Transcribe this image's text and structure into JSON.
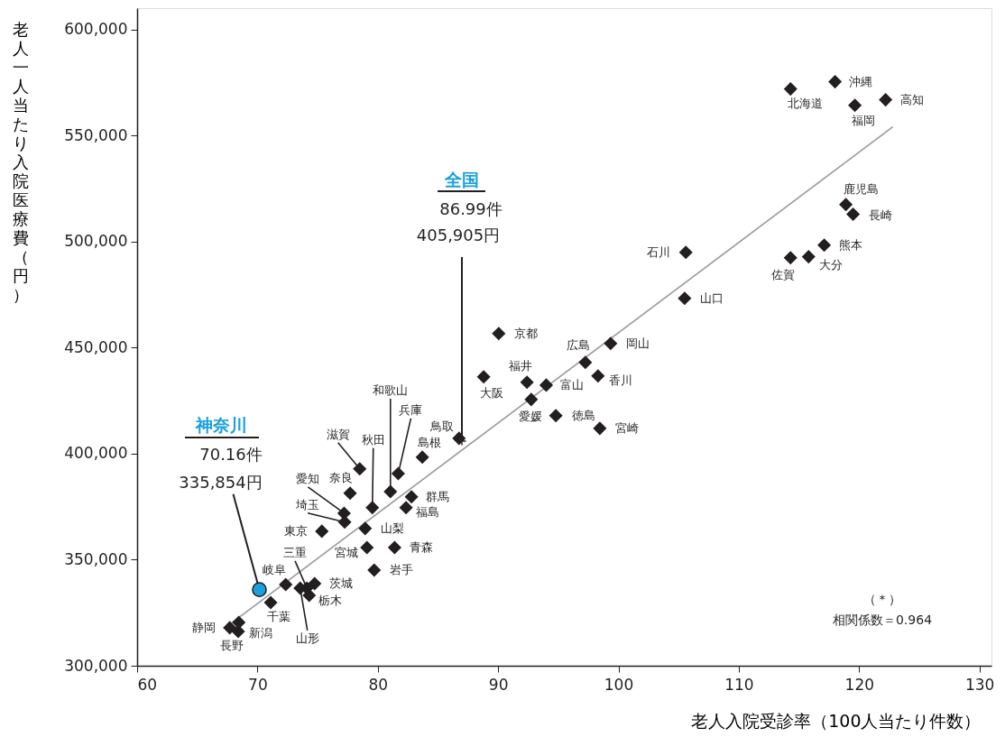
{
  "chart_data": {
    "type": "scatter",
    "xlabel": "老人入院受診率（100人当たり件数）",
    "ylabel": "老人一人当たり入院医療費（円）",
    "xlim": [
      60,
      131
    ],
    "ylim": [
      300000,
      610000
    ],
    "xticks": [
      60,
      70,
      80,
      90,
      100,
      110,
      120,
      130
    ],
    "yticks": [
      {
        "value": 300000,
        "label": "300,000"
      },
      {
        "value": 350000,
        "label": "350,000"
      },
      {
        "value": 400000,
        "label": "400,000"
      },
      {
        "value": 450000,
        "label": "450,000"
      },
      {
        "value": 500000,
        "label": "500,000"
      },
      {
        "value": 550000,
        "label": "550,000"
      },
      {
        "value": 600000,
        "label": "600,000"
      }
    ],
    "grid": false,
    "series": [
      {
        "type": "line",
        "color": "#999999",
        "x": [
          67.9,
          122.8
        ],
        "values": [
          320400,
          554000
        ]
      },
      {
        "marker": "diamond",
        "color": "#231f20",
        "x": [
          114.3,
          118.0,
          119.65,
          122.2,
          118.9,
          119.5,
          117.1,
          115.8,
          114.3,
          105.6,
          105.5,
          90.05,
          99.35,
          97.25,
          88.8,
          92.4,
          94.0,
          98.3,
          92.75,
          94.8,
          98.45,
          86.75,
          83.7,
          81.7,
          81.05,
          78.5,
          79.55,
          77.7,
          77.2,
          77.25,
          82.8,
          82.35,
          75.35,
          78.95,
          79.1,
          81.4,
          79.7,
          74.75,
          72.35,
          74.1,
          73.55,
          74.3,
          71.1,
          67.7,
          68.45,
          68.4
        ],
        "values": [
          571900,
          575300,
          564200,
          566800,
          517400,
          512800,
          498300,
          492800,
          492300,
          494900,
          473200,
          456600,
          451900,
          443000,
          436200,
          433600,
          432300,
          436600,
          425500,
          417900,
          411900,
          407200,
          398300,
          390600,
          382100,
          392800,
          374500,
          381300,
          371900,
          367700,
          379600,
          374500,
          363400,
          364700,
          355700,
          355700,
          345100,
          338700,
          338300,
          336600,
          336600,
          333200,
          329800,
          317900,
          320400,
          316200
        ]
      },
      {
        "marker": "circle",
        "color": "#1aa0dc",
        "x": [
          70.16
        ],
        "values": [
          335854
        ]
      },
      {
        "marker": "cross",
        "color": "#231f20",
        "x": [
          86.99
        ],
        "values": [
          405905
        ]
      }
    ],
    "annotations": [
      {
        "text": "北海道",
        "x": 114.3,
        "y": 571900
      },
      {
        "text": "沖縄",
        "x": 118.0,
        "y": 575300
      },
      {
        "text": "福岡",
        "x": 119.65,
        "y": 564200
      },
      {
        "text": "高知",
        "x": 122.2,
        "y": 566800
      },
      {
        "text": "鹿児島",
        "x": 118.9,
        "y": 517400
      },
      {
        "text": "長崎",
        "x": 119.5,
        "y": 512800
      },
      {
        "text": "熊本",
        "x": 117.1,
        "y": 498300
      },
      {
        "text": "大分",
        "x": 115.8,
        "y": 492800
      },
      {
        "text": "佐賀",
        "x": 114.3,
        "y": 492300
      },
      {
        "text": "石川",
        "x": 105.6,
        "y": 494900
      },
      {
        "text": "山口",
        "x": 105.5,
        "y": 473200
      },
      {
        "text": "京都",
        "x": 90.05,
        "y": 456600
      },
      {
        "text": "岡山",
        "x": 99.35,
        "y": 451900
      },
      {
        "text": "広島",
        "x": 97.25,
        "y": 443000
      },
      {
        "text": "大阪",
        "x": 88.8,
        "y": 436200
      },
      {
        "text": "福井",
        "x": 92.4,
        "y": 433600
      },
      {
        "text": "富山",
        "x": 94.0,
        "y": 432300
      },
      {
        "text": "香川",
        "x": 98.3,
        "y": 436600
      },
      {
        "text": "愛媛",
        "x": 92.75,
        "y": 425500
      },
      {
        "text": "徳島",
        "x": 94.8,
        "y": 417900
      },
      {
        "text": "宮崎",
        "x": 98.45,
        "y": 411900
      },
      {
        "text": "鳥取",
        "x": 86.75,
        "y": 407200
      },
      {
        "text": "島根",
        "x": 83.7,
        "y": 398300
      },
      {
        "text": "兵庫",
        "x": 81.7,
        "y": 390600
      },
      {
        "text": "和歌山",
        "x": 81.05,
        "y": 382100
      },
      {
        "text": "滋賀",
        "x": 78.5,
        "y": 392800
      },
      {
        "text": "秋田",
        "x": 79.55,
        "y": 374500
      },
      {
        "text": "奈良",
        "x": 77.7,
        "y": 381300
      },
      {
        "text": "愛知",
        "x": 77.2,
        "y": 371900
      },
      {
        "text": "埼玉",
        "x": 77.25,
        "y": 367700
      },
      {
        "text": "群馬",
        "x": 82.8,
        "y": 379600
      },
      {
        "text": "福島",
        "x": 82.35,
        "y": 374500
      },
      {
        "text": "東京",
        "x": 75.35,
        "y": 363400
      },
      {
        "text": "山梨",
        "x": 78.95,
        "y": 364700
      },
      {
        "text": "宮城",
        "x": 79.1,
        "y": 355700
      },
      {
        "text": "青森",
        "x": 81.4,
        "y": 355700
      },
      {
        "text": "岩手",
        "x": 79.7,
        "y": 345100
      },
      {
        "text": "茨城",
        "x": 74.75,
        "y": 338700
      },
      {
        "text": "岐阜",
        "x": 72.35,
        "y": 338300
      },
      {
        "text": "三重",
        "x": 74.1,
        "y": 336600
      },
      {
        "text": "山形",
        "x": 73.55,
        "y": 336600
      },
      {
        "text": "栃木",
        "x": 74.3,
        "y": 333200
      },
      {
        "text": "千葉",
        "x": 71.1,
        "y": 329800
      },
      {
        "text": "静岡",
        "x": 67.7,
        "y": 317900
      },
      {
        "text": "新潟",
        "x": 68.45,
        "y": 320400
      },
      {
        "text": "長野",
        "x": 68.4,
        "y": 316200
      },
      "神奈川",
      "70.16件",
      {
        "text": "335,854円",
        "x": 70.16,
        "y": 335854
      },
      "全国",
      "86.99件",
      {
        "text": "405,905円",
        "x": 86.99,
        "y": 405905
      },
      "（＊）",
      "相関係数＝0.964"
    ]
  }
}
